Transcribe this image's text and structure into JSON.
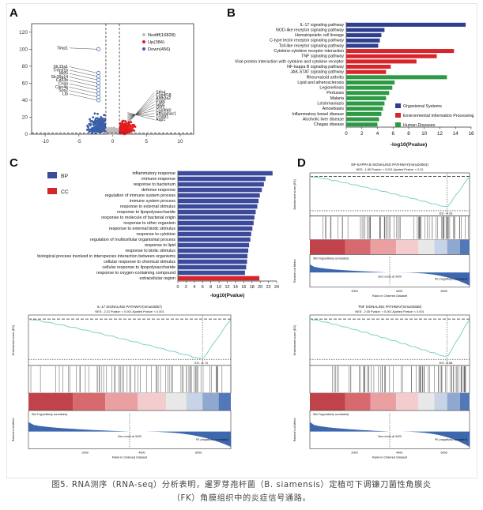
{
  "panels": {
    "a": "A",
    "b": "B",
    "c": "C",
    "d": "D"
  },
  "volcano": {
    "legend": [
      {
        "label": "Nodiff(16828)",
        "color": "#bdbdbd"
      },
      {
        "label": "Up(384)",
        "color": "#e41a1c"
      },
      {
        "label": "Down(456)",
        "color": "#3a5fa8"
      }
    ],
    "x_ticks": [
      "-10",
      "-5",
      "0",
      "5",
      "10"
    ],
    "y_ticks": [
      "0",
      "20",
      "40",
      "60",
      "80",
      "100",
      "120"
    ],
    "down_labels": [
      "Timp1",
      "Slc15a1",
      "Tnfrsf1b",
      "Mefv",
      "Slc39a14",
      "Cd33b",
      "Crisp",
      "Clec4e",
      "Sos2",
      "Ltb"
    ],
    "up_labels": [
      "Stfn4",
      "Cyp4f18",
      "Aldh3a2",
      "Puk6",
      "Gtf2i",
      "Gbf2",
      "Cyp4f40",
      "Stbgalnac1",
      "Tmod1",
      "Aqp1"
    ]
  },
  "kegg": {
    "title": "",
    "xlabel": "-log10(Pvalue)",
    "x_ticks": [
      "0",
      "2",
      "4",
      "6",
      "8",
      "10",
      "12",
      "14",
      "16"
    ],
    "xlim": [
      0,
      16
    ],
    "categories": [
      "IL-17 signaling pathway",
      "NOD-like receptor signaling pathway",
      "Hematopoietic cell lineage",
      "C-type lectin receptor signaling pathway",
      "Toll-like receptor signaling pathway",
      "Cytokine-cytokine receptor interaction",
      "TNF signaling pathway",
      "Viral protein interaction with cytokine and cytokine receptor",
      "NF-kappa B signaling pathway",
      "JAK-STAT signaling pathway",
      "Rheumatoid arthritis",
      "Lipid and atherosclerosis",
      "Legionellosis",
      "Pertussis",
      "Malaria",
      "Leishmaniasis",
      "Amoebiasis",
      "Inflammatory bowel disease",
      "Alcoholic liver disease",
      "Chagas disease"
    ],
    "values": [
      15.3,
      4.9,
      4.5,
      4.3,
      4.1,
      13.8,
      11.6,
      9.0,
      5.7,
      5.1,
      12.9,
      6.2,
      5.9,
      5.5,
      5.1,
      4.9,
      4.7,
      4.5,
      4.2,
      4.0
    ],
    "groups": [
      0,
      0,
      0,
      0,
      0,
      1,
      1,
      1,
      1,
      1,
      2,
      2,
      2,
      2,
      2,
      2,
      2,
      2,
      2,
      2
    ],
    "legend": [
      {
        "label": "Organismal Systems",
        "color": "#2f3f8f"
      },
      {
        "label": "Environmental Information Processing",
        "color": "#d7262b"
      },
      {
        "label": "Human Diseases",
        "color": "#2f9a45"
      }
    ]
  },
  "go": {
    "xlabel": "-log10(Pvalue)",
    "x_ticks": [
      "0",
      "2",
      "4",
      "6",
      "8",
      "10",
      "12",
      "14",
      "16",
      "18",
      "20",
      "22",
      "24"
    ],
    "xlim": [
      0,
      24
    ],
    "legend": [
      {
        "label": "BP",
        "color": "#3b4a9a"
      },
      {
        "label": "CC",
        "color": "#d7262b"
      }
    ],
    "categories": [
      "inflammatory response",
      "immune response",
      "response to bacterium",
      "defense response",
      "regulation of immune system process",
      "immune system process",
      "response to external stimulus",
      "response to lipopolysaccharide",
      "response to molecule of bacterial origin",
      "response to other organism",
      "response to external biotic stimulus",
      "response to cytokine",
      "regulation of multicellular organismal process",
      "response to lipid",
      "response to biotic stimulus",
      "biological process involved in interspecies interaction between organisms",
      "cellular response to chemical stimulus",
      "cellular response to lipopolysaccharide",
      "response to oxygen-containing compound",
      "extracellular region"
    ],
    "values": [
      23.0,
      21.3,
      20.9,
      20.4,
      19.9,
      19.6,
      19.3,
      18.9,
      18.6,
      18.4,
      18.1,
      17.8,
      17.6,
      17.3,
      17.1,
      16.9,
      16.8,
      16.6,
      16.3,
      19.8
    ],
    "groups": [
      0,
      0,
      0,
      0,
      0,
      0,
      0,
      0,
      0,
      0,
      0,
      0,
      0,
      0,
      0,
      0,
      0,
      0,
      0,
      1
    ]
  },
  "gsea": [
    {
      "title": "NF-KAPPA B SIGNALING PATHWAY(mmu04064)",
      "stats": "NES: -1.85   Pvalue: < 0.001   Ajusted Pvalue: < 0.01",
      "es_label": "ES: -0.33",
      "x_ticks": [
        "2000",
        "4000",
        "6000"
      ],
      "pos_label": "Sfd-Fn(positively correlated)",
      "neg_label": "FK (negatively correlated)",
      "zero_label": "Zero cross at 3420",
      "xlabel": "Rank in Ordered Dataset",
      "ylabel_top": "Enrichment score (ES)",
      "ylabel_bottom": "Ranked List Metric"
    },
    {
      "title": "IL-17 SIGNALING PATHWAY(mmu04657)",
      "stats": "NES: -2.21   Pvalue: < 0.001   Ajusted Pvalue: < 0.001",
      "es_label": "ES: -0.74",
      "x_ticks": [
        "2000",
        "4000",
        "6000"
      ],
      "pos_label": "Sfd-Fn(positively correlated)",
      "neg_label": "FK (negatively correlated)",
      "zero_label": "Zero cross at 3420",
      "xlabel": "Rank in Ordered Dataset",
      "ylabel_top": "Enrichment score (ES)",
      "ylabel_bottom": "Ranked List Metric"
    },
    {
      "title": "TNF SIGNALING PATHWAY(mmu04668)",
      "stats": "NES: -2.05   Pvalue: < 0.001   Ajusted Pvalue: < 0.001",
      "es_label": "ES: -0.58",
      "x_ticks": [
        "2000",
        "4000",
        "6000"
      ],
      "pos_label": "Sfd-Fn(positively correlated)",
      "neg_label": "FK (negatively correlated)",
      "zero_label": "Zero cross at 3420",
      "xlabel": "Rank in Ordered Dataset",
      "ylabel_top": "Enrichment score (ES)",
      "ylabel_bottom": "Ranked List Metric"
    }
  ],
  "caption": {
    "line1": "图5. RNA测序（RNA-seq）分析表明，暹罗芽孢杆菌（B. siamensis）定植可下调镰刀菌性角膜炎",
    "line2": "（FK）角膜组织中的炎症信号通路。"
  }
}
